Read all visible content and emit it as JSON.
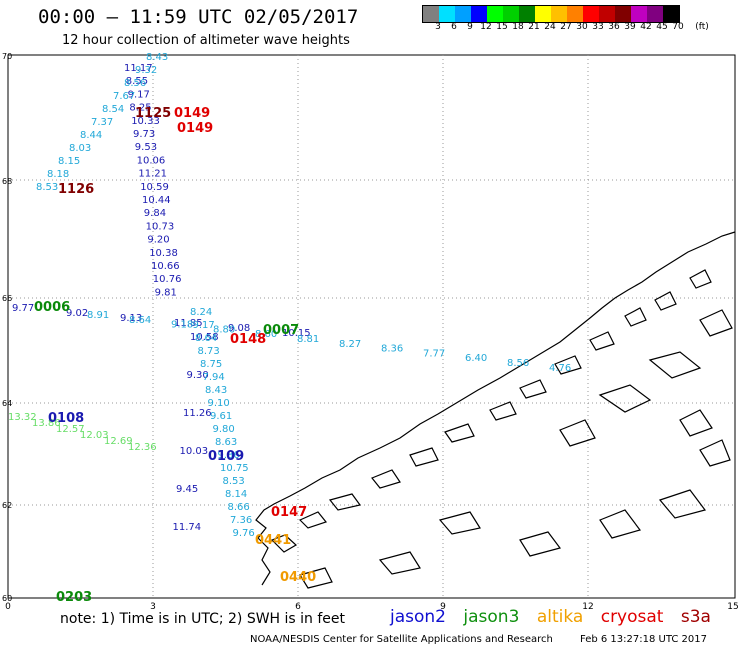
{
  "header": {
    "title": "00:00 – 11:59 UTC 02/05/2017",
    "subtitle": "12 hour collection of altimeter wave heights"
  },
  "scale": {
    "colors": [
      "#808080",
      "#00e0ff",
      "#00a0ff",
      "#0000ff",
      "#00ff00",
      "#00d000",
      "#008000",
      "#ffff00",
      "#ffc000",
      "#ff8000",
      "#ff0000",
      "#c00000",
      "#800000",
      "#c000c0",
      "#800080",
      "#000000"
    ],
    "labels": [
      "3",
      "6",
      "9",
      "12",
      "15",
      "18",
      "21",
      "24",
      "27",
      "30",
      "33",
      "36",
      "39",
      "42",
      "45",
      "70",
      "(ft)"
    ]
  },
  "axes": {
    "lat_labels": [
      "70",
      "68",
      "66",
      "64",
      "62",
      "60"
    ],
    "lon_labels": [
      "0",
      "3",
      "6",
      "9",
      "12",
      "15"
    ]
  },
  "tracks": [
    {
      "satellite": "jason2",
      "color": "#1a1ab0",
      "times": [],
      "values": [
        "11.17",
        "8.55",
        "9.17",
        "8.25",
        "10.33",
        "9.73",
        "9.53",
        "10.06",
        "11.21",
        "10.59",
        "10.44",
        "9.84",
        "10.73",
        "9.20",
        "10.38",
        "10.66",
        "10.76",
        "9.81"
      ]
    },
    {
      "satellite": "jason2",
      "color": "#1a1ab0",
      "times": [],
      "values": [
        "10.58",
        "9.30",
        "11.26",
        "10.03",
        "9.45",
        "11.74"
      ]
    },
    {
      "satellite": "jason2",
      "color": "#1a1ab0",
      "times": [],
      "values": [
        "9.77",
        "9.02",
        "9.13",
        "11.85",
        "9.08",
        "10.15"
      ]
    },
    {
      "satellite": "jason2 (sky)",
      "color": "#22a8d8",
      "times": [],
      "values": [
        "8.43",
        "9.32",
        "8.56",
        "7.67",
        "8.54",
        "7.37",
        "8.44",
        "8.03",
        "8.15",
        "8.18",
        "8.53"
      ]
    },
    {
      "satellite": "jason2 (sky)",
      "color": "#22a8d8",
      "times": [],
      "values": [
        "8.24",
        "9.17",
        "8.64",
        "8.73",
        "8.75",
        "7.94",
        "8.43",
        "9.10",
        "9.61",
        "9.80",
        "8.63",
        "9.86",
        "10.75",
        "8.53",
        "8.14",
        "8.66",
        "7.36",
        "9.76"
      ]
    },
    {
      "satellite": "jason2 (sky)",
      "color": "#22a8d8",
      "times": [],
      "values": [
        "8.91",
        "8.64",
        "9.18",
        "8.80",
        "8.60",
        "8.81",
        "8.27",
        "8.36",
        "7.77",
        "6.40",
        "8.56",
        "4.76"
      ]
    },
    {
      "satellite": "jason3",
      "color": "#66dd66",
      "times": [],
      "values": [
        "13.32",
        "13.86",
        "12.57",
        "12.03",
        "12.69",
        "12.36"
      ]
    }
  ],
  "markers": [
    {
      "label": "0149",
      "color": "#e00000"
    },
    {
      "label": "0149",
      "color": "#e00000"
    },
    {
      "label": "1125",
      "color": "#800000"
    },
    {
      "label": "1126",
      "color": "#800000"
    },
    {
      "label": "0006",
      "color": "#0a8a0a"
    },
    {
      "label": "0007",
      "color": "#0a8a0a"
    },
    {
      "label": "0148",
      "color": "#e00000"
    },
    {
      "label": "0108",
      "color": "#1a1ab0"
    },
    {
      "label": "0109",
      "color": "#1a1ab0"
    },
    {
      "label": "0147",
      "color": "#e00000"
    },
    {
      "label": "0441",
      "color": "#f09a00"
    },
    {
      "label": "0440",
      "color": "#f09a00"
    },
    {
      "label": "0203",
      "color": "#0a8a0a"
    }
  ],
  "footer": {
    "note": "note:  1) Time is in UTC;  2) SWH is in feet",
    "legend": [
      {
        "label": "jason2",
        "color": "#1010d0"
      },
      {
        "label": "jason3",
        "color": "#109010"
      },
      {
        "label": "altika",
        "color": "#f0a000"
      },
      {
        "label": "cryosat",
        "color": "#e00000"
      },
      {
        "label": "s3a",
        "color": "#a00000"
      }
    ],
    "credit": "NOAA/NESDIS Center for Satellite Applications and Research",
    "timestamp": "Feb  6 13:27:18 UTC 2017"
  }
}
